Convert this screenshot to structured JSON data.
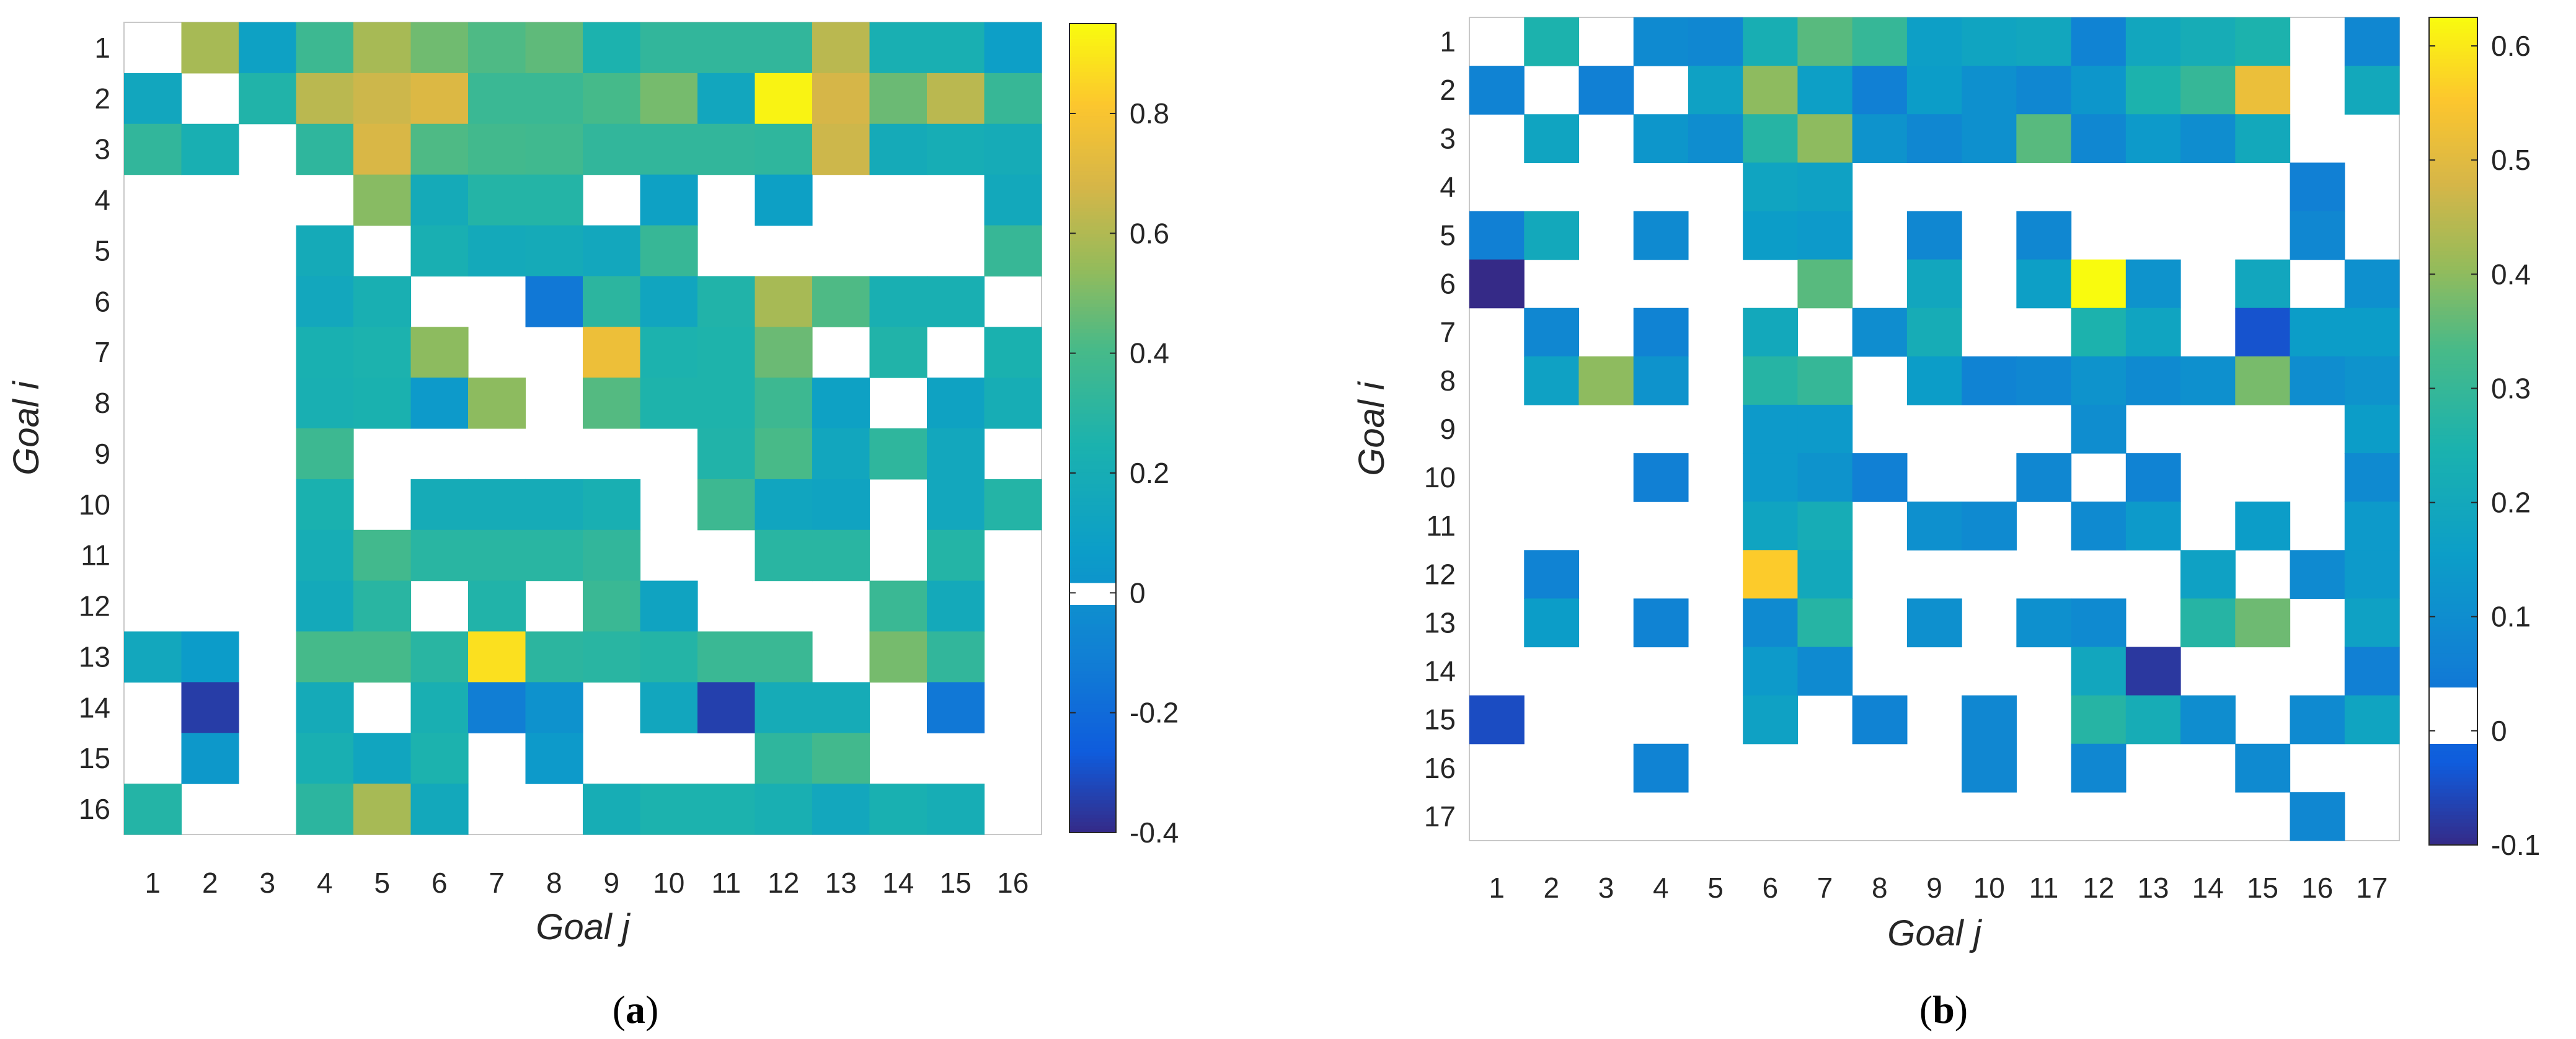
{
  "figure": {
    "panel_labels": [
      {
        "open": "(",
        "letter": "a",
        "close": ")"
      },
      {
        "open": "(",
        "letter": "b",
        "close": ")"
      }
    ]
  },
  "chart_data": [
    {
      "type": "heatmap",
      "panel": "a",
      "xlabel": "Goal j",
      "ylabel": "Goal i",
      "x_categories": [
        "1",
        "2",
        "3",
        "4",
        "5",
        "6",
        "7",
        "8",
        "9",
        "10",
        "11",
        "12",
        "13",
        "14",
        "15",
        "16"
      ],
      "y_categories": [
        "1",
        "2",
        "3",
        "4",
        "5",
        "6",
        "7",
        "8",
        "9",
        "10",
        "11",
        "12",
        "13",
        "14",
        "15",
        "16"
      ],
      "colorbar": {
        "min": -0.4,
        "max": 0.95,
        "ticks": [
          -0.4,
          -0.2,
          0,
          0.2,
          0.4,
          0.6,
          0.8
        ],
        "tick_labels": [
          "-0.4",
          "-0.2",
          "0",
          "0.2",
          "0.4",
          "0.6",
          "0.8"
        ],
        "white_band": [
          -0.02,
          0.02
        ]
      },
      "colormap": "parula",
      "empty_cells": "blank (no relation)",
      "matrix": [
        [
          null,
          0.58,
          0.1,
          0.37,
          0.58,
          0.48,
          0.42,
          0.45,
          0.25,
          0.33,
          0.33,
          0.33,
          0.62,
          0.22,
          0.22,
          0.08
        ],
        [
          0.14,
          null,
          0.27,
          0.62,
          0.66,
          0.7,
          0.36,
          0.36,
          0.4,
          0.49,
          0.14,
          0.93,
          0.68,
          0.47,
          0.62,
          0.35
        ],
        [
          0.33,
          0.22,
          null,
          0.32,
          0.69,
          0.42,
          0.39,
          0.38,
          0.33,
          0.33,
          0.33,
          0.32,
          0.66,
          0.18,
          0.2,
          0.19
        ],
        [
          null,
          null,
          null,
          null,
          0.52,
          0.18,
          0.28,
          0.28,
          null,
          0.1,
          null,
          0.09,
          null,
          null,
          null,
          0.16
        ],
        [
          null,
          null,
          null,
          0.18,
          null,
          0.22,
          0.17,
          0.18,
          0.15,
          0.35,
          null,
          null,
          null,
          null,
          null,
          0.35
        ],
        [
          null,
          null,
          null,
          0.15,
          0.22,
          null,
          null,
          -0.14,
          0.31,
          0.13,
          0.27,
          0.58,
          0.42,
          0.22,
          0.22,
          null
        ],
        [
          null,
          null,
          null,
          0.23,
          0.25,
          0.53,
          null,
          null,
          0.76,
          0.25,
          0.26,
          0.47,
          null,
          0.27,
          null,
          0.24
        ],
        [
          null,
          null,
          null,
          0.22,
          0.24,
          0.05,
          0.53,
          null,
          0.43,
          0.26,
          0.26,
          0.37,
          0.1,
          null,
          0.11,
          0.2
        ],
        [
          null,
          null,
          null,
          0.37,
          null,
          null,
          null,
          null,
          null,
          null,
          0.27,
          0.41,
          0.14,
          0.32,
          0.15,
          null
        ],
        [
          null,
          null,
          null,
          0.24,
          null,
          0.19,
          0.19,
          0.19,
          0.22,
          null,
          0.37,
          0.13,
          0.12,
          null,
          0.15,
          0.28
        ],
        [
          null,
          null,
          null,
          0.2,
          0.39,
          0.3,
          0.3,
          0.3,
          0.33,
          null,
          null,
          0.3,
          0.3,
          null,
          0.28,
          null
        ],
        [
          null,
          null,
          null,
          0.17,
          0.3,
          null,
          0.27,
          null,
          0.36,
          0.12,
          null,
          null,
          null,
          0.36,
          0.17,
          null
        ],
        [
          0.15,
          0.06,
          null,
          0.4,
          0.4,
          0.3,
          0.88,
          0.31,
          0.3,
          0.28,
          0.36,
          0.36,
          null,
          0.49,
          0.33,
          null
        ],
        [
          null,
          -0.35,
          null,
          0.18,
          null,
          0.22,
          -0.11,
          0.0,
          null,
          0.14,
          -0.34,
          0.19,
          0.19,
          null,
          -0.14,
          null
        ],
        [
          null,
          0.04,
          null,
          0.22,
          0.13,
          0.25,
          null,
          0.05,
          null,
          null,
          null,
          0.32,
          0.39,
          null,
          null,
          null
        ],
        [
          0.28,
          null,
          null,
          0.31,
          0.58,
          0.16,
          null,
          null,
          0.2,
          0.25,
          0.25,
          0.22,
          0.15,
          0.23,
          0.2,
          null
        ]
      ]
    },
    {
      "type": "heatmap",
      "panel": "b",
      "xlabel": "Goal j",
      "ylabel": "Goal i",
      "x_categories": [
        "1",
        "2",
        "3",
        "4",
        "5",
        "6",
        "7",
        "8",
        "9",
        "10",
        "11",
        "12",
        "13",
        "14",
        "15",
        "16",
        "17"
      ],
      "y_categories": [
        "1",
        "2",
        "3",
        "4",
        "5",
        "6",
        "7",
        "8",
        "9",
        "10",
        "11",
        "12",
        "13",
        "14",
        "15",
        "16",
        "17"
      ],
      "colorbar": {
        "min": -0.1,
        "max": 0.625,
        "ticks": [
          -0.1,
          0,
          0.1,
          0.2,
          0.3,
          0.4,
          0.5,
          0.6
        ],
        "tick_labels": [
          "-0.1",
          "0",
          "0.1",
          "0.2",
          "0.3",
          "0.4",
          "0.5",
          "0.6"
        ],
        "white_band": [
          -0.01,
          0.04
        ]
      },
      "colormap": "parula",
      "empty_cells": "blank (no relation)",
      "matrix": [
        [
          null,
          0.25,
          null,
          0.09,
          0.08,
          0.23,
          0.35,
          0.3,
          0.16,
          0.18,
          0.19,
          0.07,
          0.19,
          0.22,
          0.25,
          null,
          0.08
        ],
        [
          0.07,
          null,
          0.06,
          null,
          0.17,
          0.4,
          0.16,
          0.06,
          0.15,
          0.11,
          0.08,
          0.13,
          0.25,
          0.3,
          0.52,
          null,
          0.2
        ],
        [
          null,
          0.18,
          null,
          0.13,
          0.1,
          0.27,
          0.4,
          0.12,
          0.08,
          0.11,
          0.35,
          0.08,
          0.14,
          0.1,
          0.2,
          null,
          null
        ],
        [
          null,
          null,
          null,
          null,
          null,
          0.18,
          0.17,
          null,
          null,
          null,
          null,
          null,
          null,
          null,
          null,
          0.06,
          null
        ],
        [
          0.06,
          0.2,
          null,
          0.09,
          null,
          0.15,
          0.14,
          null,
          0.08,
          null,
          0.08,
          null,
          null,
          null,
          null,
          0.08,
          null
        ],
        [
          -0.1,
          null,
          null,
          null,
          null,
          null,
          0.35,
          null,
          0.19,
          null,
          0.16,
          0.625,
          0.12,
          null,
          0.19,
          null,
          0.11
        ],
        [
          null,
          0.08,
          null,
          0.07,
          null,
          0.2,
          null,
          0.1,
          0.22,
          null,
          null,
          0.25,
          0.18,
          null,
          -0.04,
          0.15,
          0.15
        ],
        [
          null,
          0.17,
          0.4,
          0.12,
          null,
          0.27,
          0.3,
          null,
          0.15,
          0.07,
          0.08,
          0.12,
          0.09,
          0.11,
          0.38,
          0.1,
          0.12
        ],
        [
          null,
          null,
          null,
          null,
          null,
          0.14,
          0.14,
          null,
          null,
          null,
          null,
          0.1,
          null,
          null,
          null,
          null,
          0.15
        ],
        [
          null,
          null,
          null,
          0.06,
          null,
          0.14,
          0.12,
          0.06,
          null,
          null,
          0.08,
          null,
          0.07,
          null,
          null,
          null,
          0.09
        ],
        [
          null,
          null,
          null,
          null,
          null,
          0.18,
          0.22,
          null,
          0.11,
          0.09,
          null,
          0.09,
          0.14,
          null,
          0.15,
          null,
          0.14
        ],
        [
          null,
          0.07,
          null,
          null,
          null,
          0.56,
          0.2,
          null,
          null,
          null,
          null,
          null,
          null,
          0.17,
          null,
          0.09,
          0.14
        ],
        [
          null,
          0.15,
          null,
          0.07,
          null,
          0.09,
          0.27,
          null,
          0.11,
          null,
          0.11,
          0.09,
          null,
          0.27,
          0.37,
          null,
          0.17
        ],
        [
          null,
          null,
          null,
          null,
          null,
          0.14,
          0.09,
          null,
          null,
          null,
          null,
          0.19,
          -0.08,
          null,
          null,
          null,
          0.06
        ],
        [
          -0.05,
          null,
          null,
          null,
          null,
          0.17,
          null,
          0.07,
          null,
          0.08,
          null,
          0.27,
          0.22,
          0.1,
          null,
          0.09,
          0.18
        ],
        [
          null,
          null,
          null,
          0.07,
          null,
          null,
          null,
          null,
          null,
          0.08,
          null,
          0.08,
          null,
          null,
          0.09,
          null,
          null
        ],
        [
          null,
          null,
          null,
          null,
          null,
          null,
          null,
          null,
          null,
          null,
          null,
          null,
          null,
          null,
          null,
          0.08,
          null
        ]
      ]
    }
  ]
}
